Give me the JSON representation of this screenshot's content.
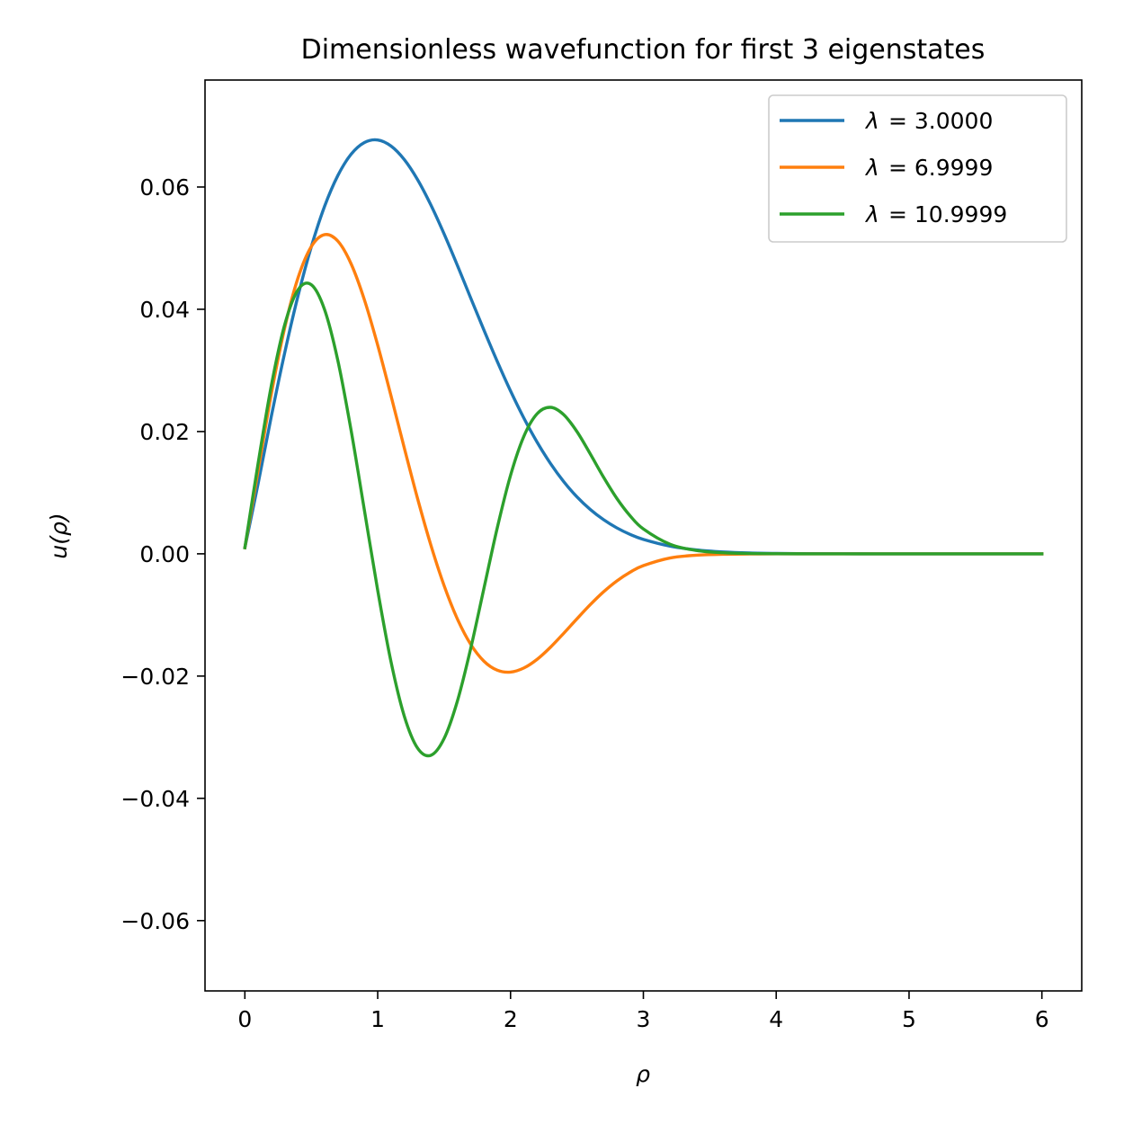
{
  "chart_data": {
    "type": "line",
    "title": "Dimensionless wavefunction for first 3 eigenstates",
    "xlabel": "ρ",
    "ylabel": "u(ρ)",
    "xlim": [
      -0.3,
      6.3
    ],
    "ylim": [
      -0.0715,
      0.0775
    ],
    "xticks": [
      0,
      1,
      2,
      3,
      4,
      5,
      6
    ],
    "xtick_labels": [
      "0",
      "1",
      "2",
      "3",
      "4",
      "5",
      "6"
    ],
    "yticks": [
      -0.06,
      -0.04,
      -0.02,
      0.0,
      0.02,
      0.04,
      0.06
    ],
    "ytick_labels": [
      "−0.06",
      "−0.04",
      "−0.02",
      "0.00",
      "0.02",
      "0.04",
      "0.06"
    ],
    "grid": false,
    "legend_position": "top-right",
    "series": [
      {
        "name": "λ = 3.0000",
        "legend_symbol": "λ",
        "legend_value": "= 3.0000",
        "color": "#1f77b4",
        "x": [
          0.0,
          0.1,
          0.2,
          0.3,
          0.4,
          0.5,
          0.6,
          0.7,
          0.8,
          0.9,
          1.0,
          1.1,
          1.2,
          1.3,
          1.4,
          1.5,
          1.6,
          1.7,
          1.8,
          1.9,
          2.0,
          2.1,
          2.2,
          2.3,
          2.4,
          2.5,
          2.6,
          2.7,
          2.8,
          2.9,
          3.0,
          3.2,
          3.4,
          3.6,
          3.8,
          4.0,
          4.25,
          4.5,
          4.75,
          5.0,
          5.5,
          6.0
        ],
        "y": [
          0.001,
          0.01151,
          0.02258,
          0.0329,
          0.04219,
          0.05022,
          0.05683,
          0.06188,
          0.06537,
          0.06728,
          0.0677,
          0.06671,
          0.06449,
          0.06121,
          0.05707,
          0.05232,
          0.04717,
          0.04185,
          0.03658,
          0.03147,
          0.02664,
          0.02221,
          0.01826,
          0.0148,
          0.01182,
          0.00931,
          0.00726,
          0.00559,
          0.00424,
          0.00318,
          0.00236,
          0.00126,
          0.00064,
          0.00031,
          0.00014,
          6e-05,
          2e-05,
          1e-05,
          0.0,
          0.0,
          0.0,
          0.0
        ]
      },
      {
        "name": "λ = 6.9999",
        "legend_symbol": "λ",
        "legend_value": "= 6.9999",
        "color": "#ff7f0e",
        "x": [
          0.0,
          0.1,
          0.2,
          0.3,
          0.4,
          0.5,
          0.6,
          0.7,
          0.8,
          0.9,
          1.0,
          1.1,
          1.2,
          1.3,
          1.4,
          1.5,
          1.6,
          1.7,
          1.8,
          1.9,
          2.0,
          2.1,
          2.2,
          2.3,
          2.4,
          2.5,
          2.6,
          2.7,
          2.8,
          2.9,
          3.0,
          3.2,
          3.4,
          3.6,
          3.8,
          4.0,
          4.25,
          4.5,
          4.75,
          5.0,
          5.5,
          6.0
        ],
        "y": [
          0.001,
          0.01367,
          0.02626,
          0.03699,
          0.04513,
          0.05025,
          0.05221,
          0.05115,
          0.04742,
          0.04154,
          0.03413,
          0.02586,
          0.01733,
          0.00905,
          0.00144,
          -0.00521,
          -0.01067,
          -0.0148,
          -0.01757,
          -0.01904,
          -0.01935,
          -0.01868,
          -0.01726,
          -0.01529,
          -0.01301,
          -0.01063,
          -0.00832,
          -0.00622,
          -0.00444,
          -0.00301,
          -0.00193,
          -0.00068,
          -0.00023,
          -8e-05,
          -3e-05,
          -1e-05,
          0.0,
          0.0,
          0.0,
          0.0,
          0.0,
          0.0
        ]
      },
      {
        "name": "λ = 10.9999",
        "legend_symbol": "λ",
        "legend_value": "= 10.9999",
        "color": "#2ca02c",
        "x": [
          0.0,
          0.1,
          0.2,
          0.3,
          0.4,
          0.5,
          0.6,
          0.7,
          0.8,
          0.9,
          1.0,
          1.1,
          1.2,
          1.3,
          1.4,
          1.5,
          1.6,
          1.7,
          1.8,
          1.9,
          2.0,
          2.1,
          2.2,
          2.3,
          2.4,
          2.5,
          2.6,
          2.7,
          2.8,
          2.9,
          3.0,
          3.2,
          3.4,
          3.6,
          3.8,
          4.0,
          4.25,
          4.5,
          4.75,
          5.0,
          5.5,
          6.0
        ],
        "y": [
          0.001,
          0.01483,
          0.0276,
          0.03749,
          0.04319,
          0.04402,
          0.03995,
          0.03161,
          0.02016,
          0.00711,
          -0.00598,
          -0.01764,
          -0.02654,
          -0.03178,
          -0.03296,
          -0.03021,
          -0.02408,
          -0.01549,
          -0.00562,
          0.00424,
          0.01283,
          0.01921,
          0.02291,
          0.02396,
          0.02277,
          0.01999,
          0.01635,
          0.01254,
          0.00907,
          0.00622,
          0.00406,
          0.00157,
          0.00055,
          0.00017,
          5e-05,
          1e-05,
          0.0,
          0.0,
          0.0,
          0.0,
          0.0,
          0.0
        ]
      }
    ]
  }
}
